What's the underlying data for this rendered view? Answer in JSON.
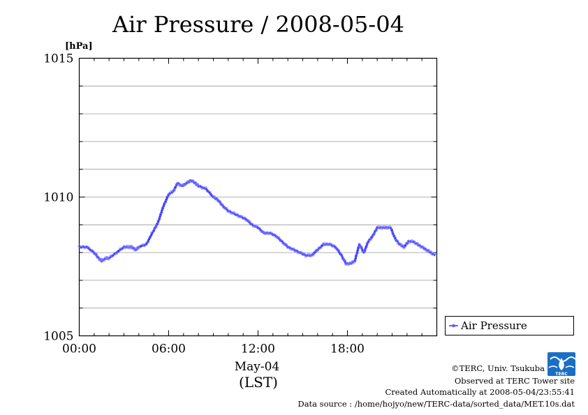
{
  "chart_data": {
    "type": "line",
    "title": "Air Pressure / 2008-05-04",
    "ylabel": "[hPa]",
    "ylim": [
      1005,
      1015
    ],
    "yticks": [
      1005,
      1010,
      1015
    ],
    "xlim": [
      0,
      23.9
    ],
    "xtick_labels": [
      "00:00",
      "06:00",
      "12:00",
      "18:00"
    ],
    "xlabel_date": "May-04",
    "xlabel_zone": "(LST)",
    "grid": true,
    "legend": "right",
    "series": [
      {
        "name": "Air Pressure",
        "color": "#3333ff",
        "x": [
          0,
          0.5,
          1,
          1.3,
          1.5,
          1.8,
          2.0,
          2.5,
          3.0,
          3.3,
          3.5,
          3.8,
          4.0,
          4.5,
          5.0,
          5.3,
          5.6,
          6.0,
          6.3,
          6.6,
          6.9,
          7.2,
          7.5,
          7.8,
          8.0,
          8.5,
          9.0,
          9.3,
          9.6,
          10.0,
          10.4,
          10.8,
          11.2,
          11.6,
          12.0,
          12.4,
          12.8,
          13.2,
          13.6,
          14.0,
          14.4,
          14.8,
          15.2,
          15.6,
          16.0,
          16.4,
          16.8,
          17.2,
          17.6,
          17.9,
          18.2,
          18.5,
          18.8,
          19.1,
          19.4,
          19.7,
          20.0,
          20.3,
          20.6,
          20.9,
          21.2,
          21.5,
          21.8,
          22.1,
          22.4,
          22.7,
          23.0,
          23.3,
          23.6,
          23.9
        ],
        "y": [
          1008.2,
          1008.2,
          1008.0,
          1007.8,
          1007.7,
          1007.8,
          1007.8,
          1008.0,
          1008.2,
          1008.2,
          1008.2,
          1008.1,
          1008.2,
          1008.3,
          1008.8,
          1009.1,
          1009.6,
          1010.1,
          1010.2,
          1010.5,
          1010.4,
          1010.5,
          1010.6,
          1010.5,
          1010.4,
          1010.3,
          1010.0,
          1009.9,
          1009.7,
          1009.5,
          1009.4,
          1009.3,
          1009.2,
          1009.0,
          1008.9,
          1008.7,
          1008.7,
          1008.6,
          1008.4,
          1008.2,
          1008.1,
          1008.0,
          1007.9,
          1007.9,
          1008.1,
          1008.3,
          1008.3,
          1008.2,
          1007.9,
          1007.6,
          1007.6,
          1007.7,
          1008.3,
          1008.0,
          1008.4,
          1008.6,
          1008.9,
          1008.9,
          1008.9,
          1008.9,
          1008.5,
          1008.3,
          1008.2,
          1008.4,
          1008.4,
          1008.3,
          1008.2,
          1008.1,
          1008.0,
          1007.9
        ]
      }
    ]
  },
  "credits": {
    "copyright": "©TERC, Univ. Tsukuba",
    "observed": "Observed at TERC Tower site",
    "created": "Created Automatically at 2008-05-04/23:55:41",
    "source": "Data source : /home/hojyo/new/TERC-data/sorted_data/MET.10s.dat",
    "logo_text": "TERC"
  }
}
